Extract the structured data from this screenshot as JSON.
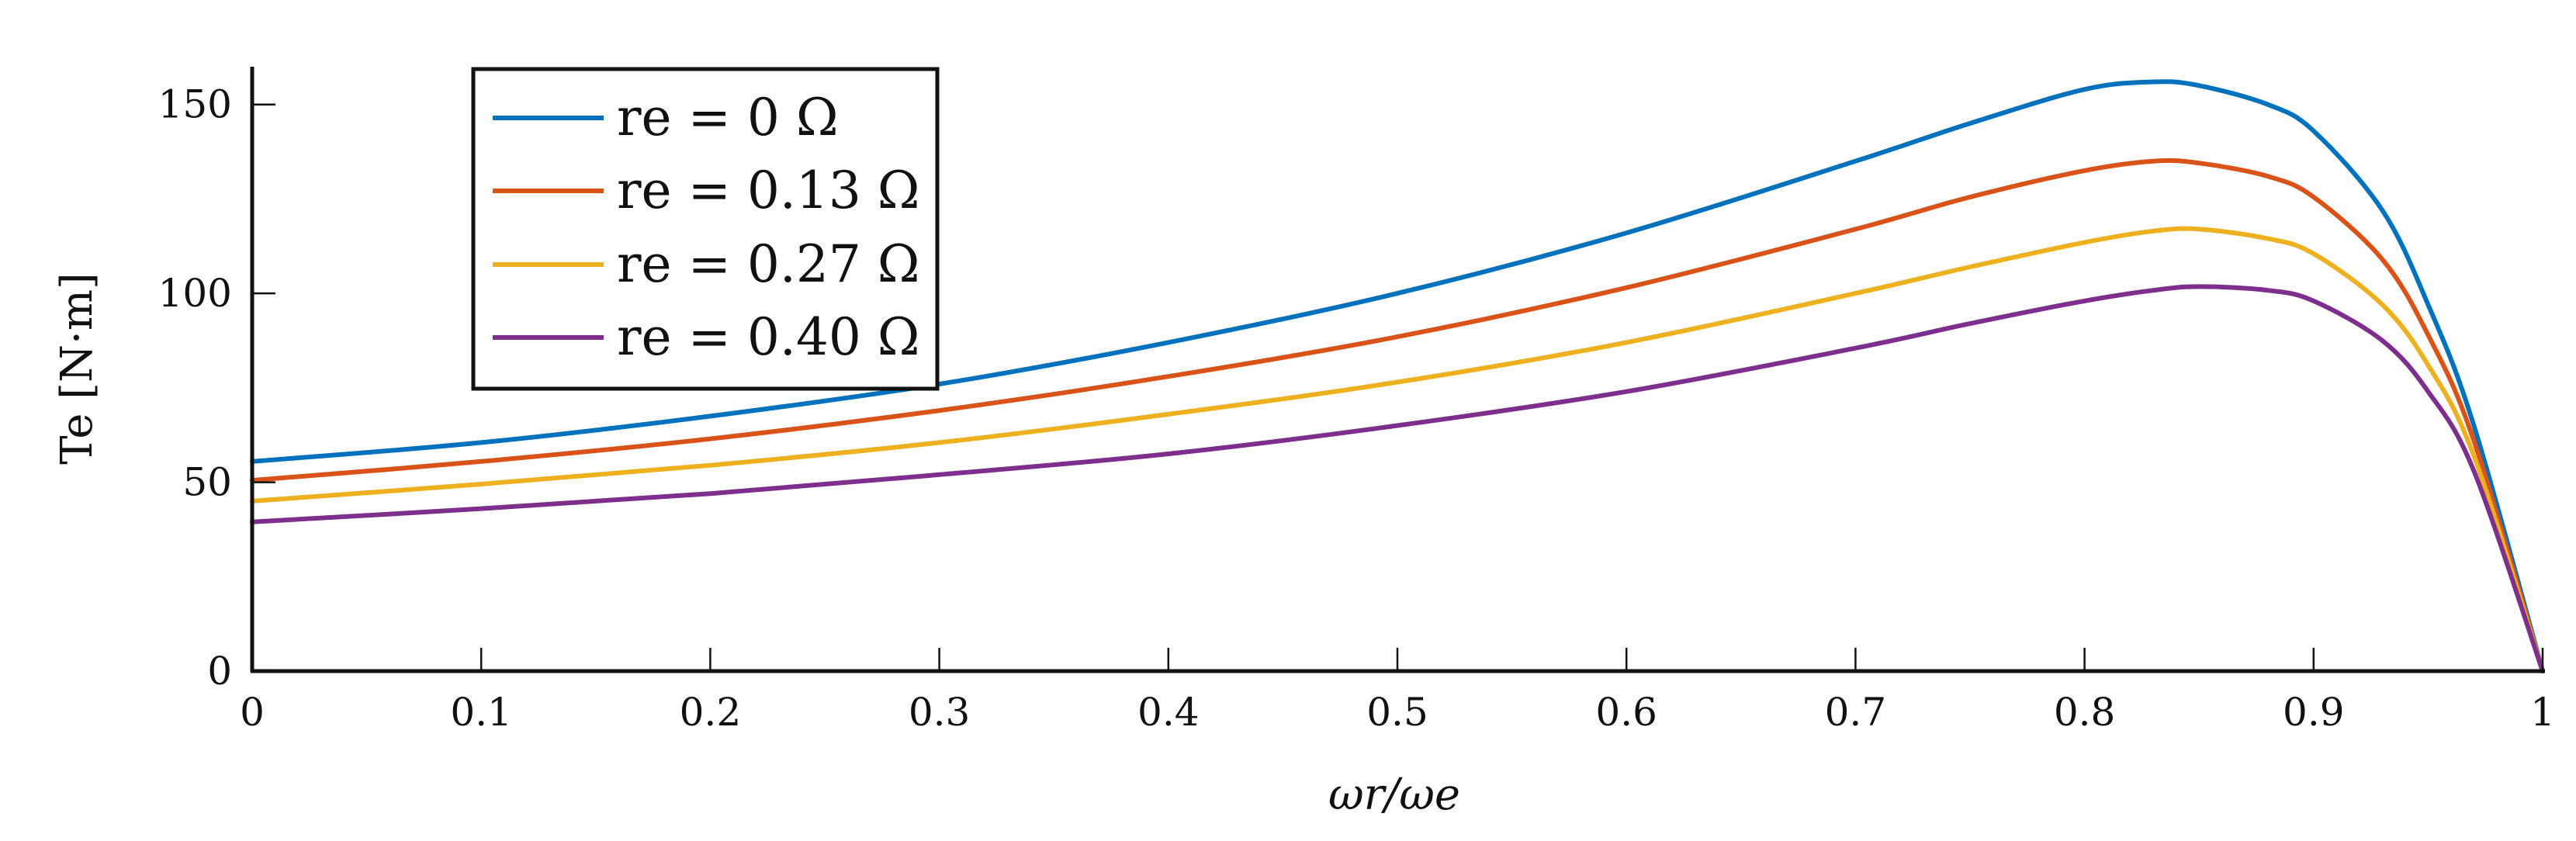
{
  "chart_data": {
    "type": "line",
    "title": "",
    "xlabel": "ωr/ωe",
    "ylabel": "Te [N·m]",
    "xlim": [
      0,
      1
    ],
    "ylim": [
      0,
      160
    ],
    "x_ticks": [
      0,
      0.1,
      0.2,
      0.3,
      0.4,
      0.5,
      0.6,
      0.7,
      0.8,
      0.9,
      1
    ],
    "x_tick_labels": [
      "0",
      "0.1",
      "0.2",
      "0.3",
      "0.4",
      "0.5",
      "0.6",
      "0.7",
      "0.8",
      "0.9",
      "1"
    ],
    "y_ticks": [
      0,
      50,
      100,
      150
    ],
    "y_tick_labels": [
      "0",
      "50",
      "100",
      "150"
    ],
    "grid": false,
    "legend_position": "top-left",
    "x": [
      0,
      0.1,
      0.2,
      0.3,
      0.4,
      0.5,
      0.6,
      0.7,
      0.75,
      0.8,
      0.83,
      0.85,
      0.88,
      0.9,
      0.93,
      0.95,
      0.97,
      1.0
    ],
    "series": [
      {
        "name": "re = 0 Ω",
        "color": "#0072BD",
        "values": [
          55.5,
          60.5,
          67.5,
          76,
          87,
          100,
          116,
          135,
          145,
          154,
          156,
          155,
          150,
          143,
          122,
          97,
          65,
          0
        ]
      },
      {
        "name": "re = 0.13 Ω",
        "color": "#D95319",
        "values": [
          50.5,
          55.5,
          61.5,
          69,
          78,
          88.5,
          101.5,
          117,
          125.5,
          132.5,
          135,
          134.5,
          131,
          125.5,
          109,
          89,
          61,
          0
        ]
      },
      {
        "name": "re = 0.27 Ω",
        "color": "#EDB120",
        "values": [
          45,
          49.5,
          54.5,
          60.5,
          68,
          76.5,
          87,
          100,
          107,
          113.5,
          116.5,
          117,
          114.5,
          110.5,
          97,
          81,
          57,
          0
        ]
      },
      {
        "name": "re = 0.40 Ω",
        "color": "#7E2F8E",
        "values": [
          39.5,
          43,
          47,
          52,
          57.5,
          65,
          74,
          85.5,
          92,
          98,
          100.8,
          101.8,
          100.8,
          98,
          87.5,
          74,
          53,
          0
        ]
      }
    ]
  }
}
